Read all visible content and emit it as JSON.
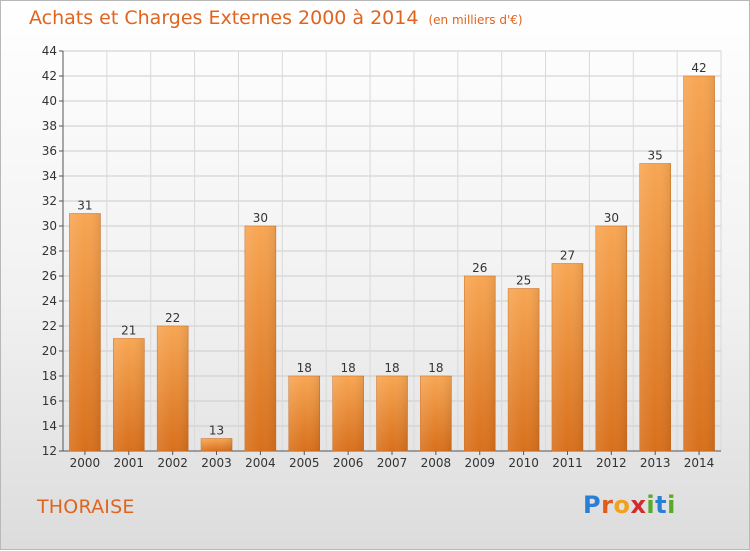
{
  "header": {
    "title": "Achats et Charges Externes 2000 à 2014",
    "subtitle": "(en milliers d'€)"
  },
  "footer": {
    "commune": "THORAISE",
    "logo_letters": [
      "P",
      "r",
      "o",
      "x",
      "i",
      "t",
      "i"
    ],
    "logo_colors": [
      "#2a7fd4",
      "#e25a1c",
      "#f2a020",
      "#d42a2a",
      "#5aaa2a",
      "#2a7fd4",
      "#5aaa2a"
    ]
  },
  "chart_data": {
    "type": "bar",
    "title": "Achats et Charges Externes 2000 à 2014",
    "subtitle": "(en milliers d'€)",
    "categories": [
      "2000",
      "2001",
      "2002",
      "2003",
      "2004",
      "2005",
      "2006",
      "2007",
      "2008",
      "2009",
      "2010",
      "2011",
      "2012",
      "2013",
      "2014"
    ],
    "values": [
      31,
      21,
      22,
      13,
      30,
      18,
      18,
      18,
      18,
      26,
      25,
      27,
      30,
      35,
      42
    ],
    "ylim": [
      12,
      44
    ],
    "yticks": [
      12,
      14,
      16,
      18,
      20,
      22,
      24,
      26,
      28,
      30,
      32,
      34,
      36,
      38,
      40,
      42,
      44
    ],
    "grid": true,
    "bar_color": "#f0943a",
    "legend": "none"
  }
}
